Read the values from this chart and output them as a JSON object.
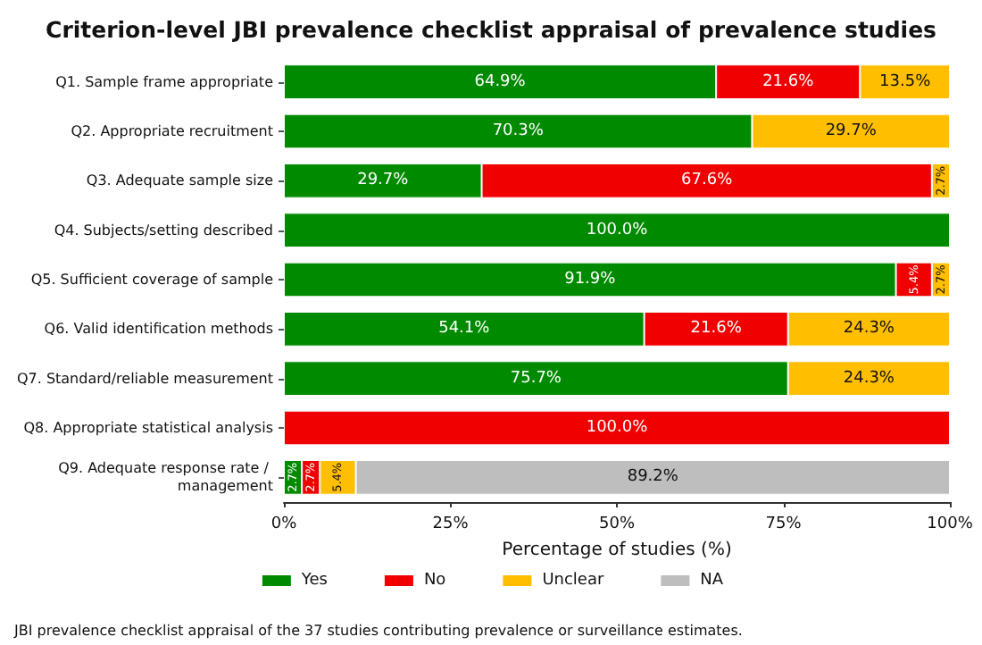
{
  "chart_data": {
    "type": "bar",
    "orientation": "horizontal",
    "stacked": true,
    "title": "Criterion-level JBI prevalence checklist appraisal of prevalence studies",
    "xlabel": "Percentage of studies (%)",
    "categories": [
      "Q1. Sample frame appropriate",
      "Q2. Appropriate recruitment",
      "Q3. Adequate sample size",
      "Q4. Subjects/setting described",
      "Q5. Sufficient coverage of sample",
      "Q6. Valid identification methods",
      "Q7. Standard/reliable measurement",
      "Q8. Appropriate statistical analysis",
      "Q9. Adequate response rate / management"
    ],
    "series": [
      {
        "name": "Yes",
        "color": "#008a00",
        "values": [
          64.9,
          70.3,
          29.7,
          100.0,
          91.9,
          54.1,
          75.7,
          null,
          2.7
        ],
        "value_labels": [
          "64.9%",
          "70.3%",
          "29.7%",
          "100.0%",
          "91.9%",
          "54.1%",
          "75.7%",
          null,
          "2.7%"
        ]
      },
      {
        "name": "No",
        "color": "#f00000",
        "values": [
          21.6,
          null,
          67.6,
          null,
          5.4,
          21.6,
          null,
          100.0,
          2.7
        ],
        "value_labels": [
          "21.6%",
          null,
          "67.6%",
          null,
          "5.4%",
          "21.6%",
          null,
          "100.0%",
          "2.7%"
        ]
      },
      {
        "name": "Unclear",
        "color": "#ffbf00",
        "values": [
          13.5,
          29.7,
          2.7,
          null,
          2.7,
          24.3,
          24.3,
          null,
          5.4
        ],
        "value_labels": [
          "13.5%",
          "29.7%",
          "2.7%",
          null,
          "2.7%",
          "24.3%",
          "24.3%",
          null,
          "5.4%"
        ]
      },
      {
        "name": "NA",
        "color": "#bebebe",
        "values": [
          null,
          null,
          null,
          null,
          null,
          null,
          null,
          null,
          89.2
        ],
        "value_labels": [
          null,
          null,
          null,
          null,
          null,
          null,
          null,
          null,
          "89.2%"
        ]
      }
    ],
    "xlim": [
      0,
      100
    ],
    "xticks": [
      {
        "value": 0,
        "label": "0%"
      },
      {
        "value": 25,
        "label": "25%"
      },
      {
        "value": 50,
        "label": "50%"
      },
      {
        "value": 75,
        "label": "75%"
      },
      {
        "value": 100,
        "label": "100%"
      }
    ],
    "grid": false,
    "legend": "bottom",
    "annotations": [
      "JBI prevalence checklist appraisal of the 37 studies contributing prevalence or surveillance estimates."
    ]
  }
}
